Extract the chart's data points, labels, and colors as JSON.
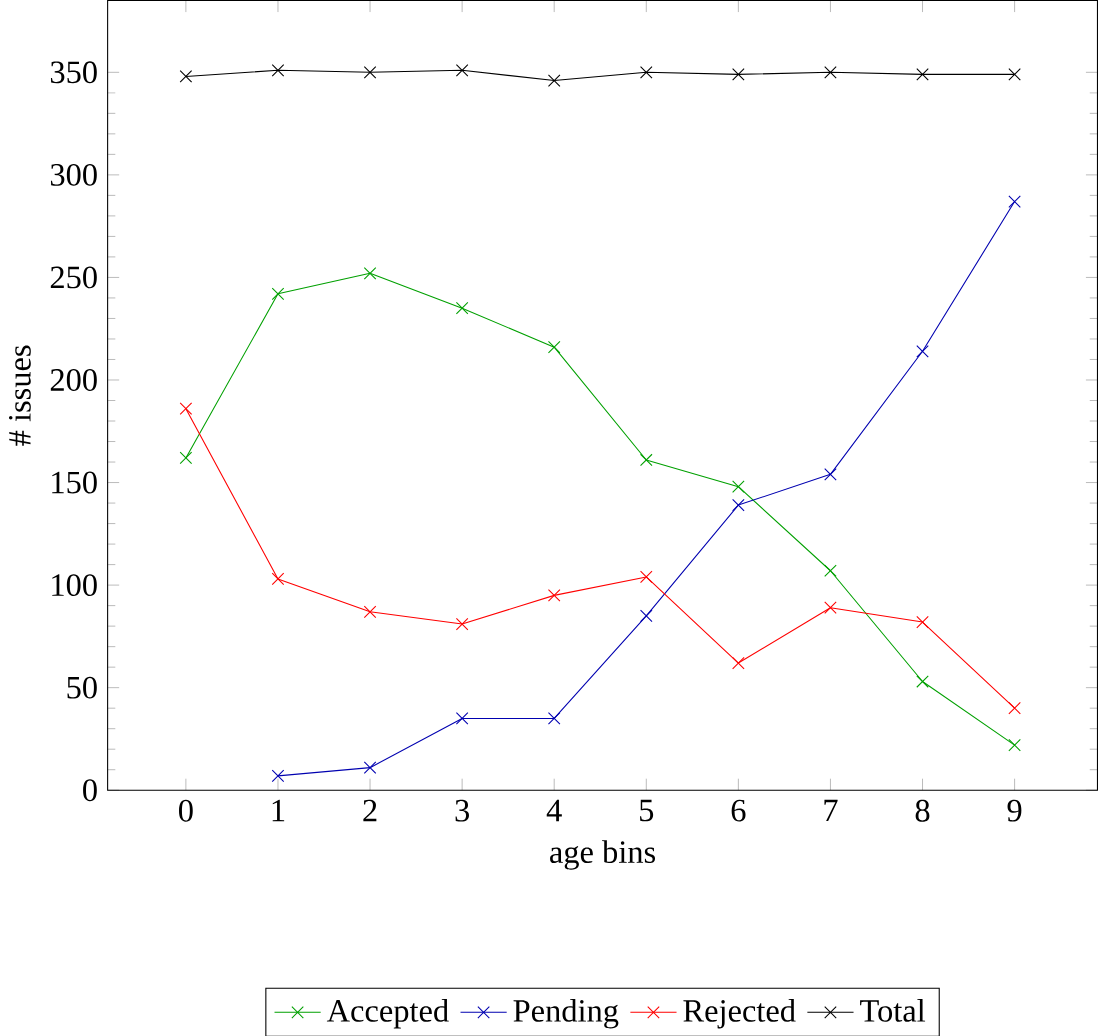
{
  "chart_data": {
    "type": "line",
    "xlabel": "age bins",
    "ylabel": "# issues",
    "x": [
      0,
      1,
      2,
      3,
      4,
      5,
      6,
      7,
      8,
      9
    ],
    "xlim": [
      -0.85,
      9.9
    ],
    "ylim": [
      0,
      385
    ],
    "xticks": [
      0,
      1,
      2,
      3,
      4,
      5,
      6,
      7,
      8,
      9
    ],
    "yticks": [
      0,
      50,
      100,
      150,
      200,
      250,
      300,
      350
    ],
    "marker": "cross",
    "legend": "bottom",
    "series": [
      {
        "name": "Accepted",
        "color": "#00a000",
        "values": [
          162,
          242,
          252,
          235,
          216,
          161,
          148,
          107,
          53,
          22
        ]
      },
      {
        "name": "Pending",
        "color": "#0000b0",
        "values": [
          null,
          7,
          11,
          35,
          35,
          85,
          139,
          154,
          214,
          287
        ]
      },
      {
        "name": "Rejected",
        "color": "#ff0000",
        "values": [
          186,
          103,
          87,
          81,
          95,
          104,
          62,
          89,
          82,
          40
        ]
      },
      {
        "name": "Total",
        "color": "#000000",
        "values": [
          348,
          351,
          350,
          351,
          346,
          350,
          349,
          350,
          349,
          349
        ]
      }
    ]
  }
}
